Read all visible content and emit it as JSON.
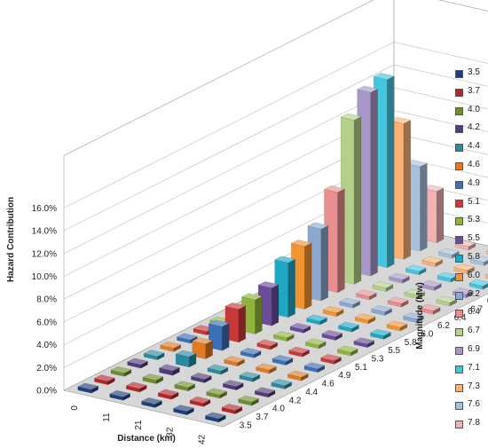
{
  "chart_data": {
    "type": "bar3d",
    "xlabel": "Distance (km)",
    "ylabel": "Hazard Contribution",
    "zlabel": "Magnitude (Mw)",
    "distances": [
      "0",
      "11",
      "21",
      "32",
      "42"
    ],
    "magnitudes": [
      "3.5",
      "3.7",
      "4.0",
      "4.2",
      "4.4",
      "4.6",
      "4.9",
      "5.1",
      "5.3",
      "5.5",
      "5.8",
      "6.0",
      "6.2",
      "6.4",
      "6.7",
      "6.9",
      "7.1",
      "7.3",
      "7.6",
      "7.8"
    ],
    "y_ticks": [
      "0.0%",
      "2.0%",
      "4.0%",
      "6.0%",
      "8.0%",
      "10.0%",
      "12.0%",
      "14.0%",
      "16.0%"
    ],
    "ylim": [
      0,
      16
    ],
    "unit": "%",
    "legend_position": "right",
    "series_colors": [
      "#1f3f7a",
      "#b5262a",
      "#6e8e2c",
      "#4f3b7a",
      "#2b8aa0",
      "#e07b24",
      "#3b6fb6",
      "#c83a3a",
      "#8fb43c",
      "#6a4b9c",
      "#1fa8c4",
      "#f39432",
      "#8ba8cf",
      "#e98e8e",
      "#b5d08a",
      "#a997c7",
      "#43c6e0",
      "#f8b275",
      "#a9c0dc",
      "#f2b2b2"
    ],
    "series": [
      {
        "name": "3.5",
        "values": [
          0.3,
          0.3,
          0.3,
          0.3,
          0.3
        ]
      },
      {
        "name": "3.7",
        "values": [
          0.3,
          0.3,
          0.3,
          0.3,
          0.3
        ]
      },
      {
        "name": "4.0",
        "values": [
          0.3,
          0.3,
          0.3,
          0.3,
          0.3
        ]
      },
      {
        "name": "4.2",
        "values": [
          0.3,
          0.4,
          0.3,
          0.3,
          0.3
        ]
      },
      {
        "name": "4.4",
        "values": [
          0.3,
          0.9,
          0.3,
          0.3,
          0.3
        ]
      },
      {
        "name": "4.6",
        "values": [
          0.3,
          1.3,
          0.3,
          0.3,
          0.3
        ]
      },
      {
        "name": "4.9",
        "values": [
          0.3,
          2.1,
          0.3,
          0.3,
          0.3
        ]
      },
      {
        "name": "5.1",
        "values": [
          0.3,
          2.9,
          0.3,
          0.3,
          0.3
        ]
      },
      {
        "name": "5.3",
        "values": [
          0.3,
          3.0,
          0.3,
          0.3,
          0.3
        ]
      },
      {
        "name": "5.5",
        "values": [
          0.3,
          3.3,
          0.3,
          0.3,
          0.3
        ]
      },
      {
        "name": "5.8",
        "values": [
          0.3,
          4.8,
          0.3,
          0.3,
          0.3
        ]
      },
      {
        "name": "6.0",
        "values": [
          0.3,
          5.5,
          0.3,
          0.3,
          0.3
        ]
      },
      {
        "name": "6.2",
        "values": [
          0.3,
          6.3,
          0.3,
          0.3,
          0.3
        ]
      },
      {
        "name": "6.4",
        "values": [
          0.3,
          8.8,
          0.3,
          0.3,
          0.3
        ]
      },
      {
        "name": "6.7",
        "values": [
          0.3,
          14.4,
          0.3,
          0.3,
          0.3
        ]
      },
      {
        "name": "6.9",
        "values": [
          0.3,
          16.1,
          0.3,
          0.3,
          0.3
        ]
      },
      {
        "name": "7.1",
        "values": [
          0.3,
          16.5,
          0.3,
          0.3,
          0.3
        ]
      },
      {
        "name": "7.3",
        "values": [
          0.3,
          11.9,
          0.3,
          0.3,
          0.3
        ]
      },
      {
        "name": "7.6",
        "values": [
          0.3,
          7.4,
          0.3,
          0.3,
          0.3
        ]
      },
      {
        "name": "7.8",
        "values": [
          0.3,
          4.5,
          0.3,
          0.3,
          0.3
        ]
      }
    ]
  }
}
